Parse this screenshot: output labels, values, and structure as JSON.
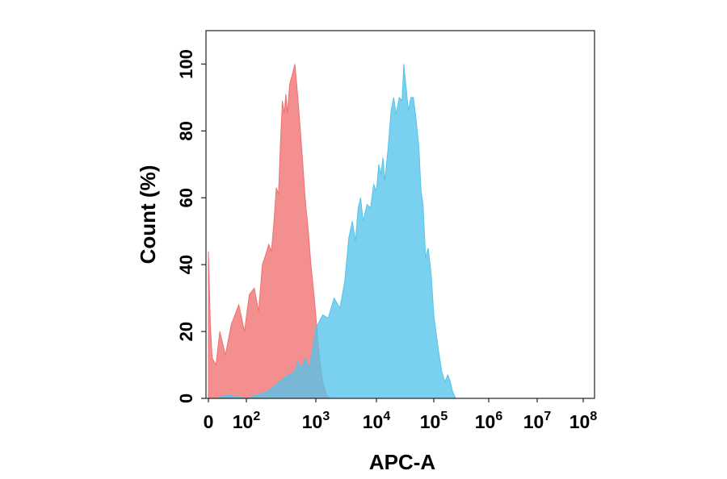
{
  "chart_data": {
    "type": "area",
    "title": "",
    "xlabel": "APC-A",
    "ylabel": "Count  (%)",
    "xscale": "biexponential",
    "xlim": [
      0,
      100000000
    ],
    "ylim": [
      0,
      110
    ],
    "grid": false,
    "x_ticks": [
      {
        "value": 0,
        "base": "0",
        "exp": ""
      },
      {
        "value": 100,
        "base": "10",
        "exp": "2"
      },
      {
        "value": 1000,
        "base": "10",
        "exp": "3"
      },
      {
        "value": 10000,
        "base": "10",
        "exp": "4"
      },
      {
        "value": 100000,
        "base": "10",
        "exp": "5"
      },
      {
        "value": 1000000,
        "base": "10",
        "exp": "6"
      },
      {
        "value": 10000000,
        "base": "10",
        "exp": "7"
      },
      {
        "value": 100000000,
        "base": "10",
        "exp": "8"
      }
    ],
    "y_ticks": [
      {
        "value": 0,
        "label": "0"
      },
      {
        "value": 20,
        "label": "20"
      },
      {
        "value": 40,
        "label": "40"
      },
      {
        "value": 60,
        "label": "60"
      },
      {
        "value": 80,
        "label": "80"
      },
      {
        "value": 100,
        "label": "100"
      }
    ],
    "series": [
      {
        "color": "#f07070",
        "points": [
          [
            0,
            44
          ],
          [
            5,
            22
          ],
          [
            10,
            12
          ],
          [
            20,
            10
          ],
          [
            30,
            20
          ],
          [
            45,
            13
          ],
          [
            60,
            22
          ],
          [
            80,
            28
          ],
          [
            95,
            20
          ],
          [
            110,
            31
          ],
          [
            130,
            33
          ],
          [
            150,
            26
          ],
          [
            170,
            40
          ],
          [
            190,
            43
          ],
          [
            210,
            46
          ],
          [
            230,
            44
          ],
          [
            250,
            53
          ],
          [
            270,
            63
          ],
          [
            290,
            61
          ],
          [
            310,
            77
          ],
          [
            330,
            89
          ],
          [
            350,
            85
          ],
          [
            370,
            91
          ],
          [
            390,
            85
          ],
          [
            420,
            94
          ],
          [
            460,
            97
          ],
          [
            500,
            100
          ],
          [
            550,
            90
          ],
          [
            600,
            80
          ],
          [
            650,
            70
          ],
          [
            700,
            60
          ],
          [
            780,
            50
          ],
          [
            850,
            40
          ],
          [
            950,
            30
          ],
          [
            1050,
            20
          ],
          [
            1150,
            12
          ],
          [
            1300,
            5
          ],
          [
            1500,
            1
          ],
          [
            1700,
            0
          ]
        ]
      },
      {
        "color": "#55c4ea",
        "points": [
          [
            20,
            0
          ],
          [
            50,
            1
          ],
          [
            100,
            0
          ],
          [
            200,
            2
          ],
          [
            300,
            5
          ],
          [
            400,
            7
          ],
          [
            500,
            8
          ],
          [
            550,
            11
          ],
          [
            620,
            9
          ],
          [
            700,
            12
          ],
          [
            800,
            9
          ],
          [
            900,
            15
          ],
          [
            1000,
            21
          ],
          [
            1300,
            25
          ],
          [
            1600,
            24
          ],
          [
            2000,
            30
          ],
          [
            2500,
            27
          ],
          [
            3000,
            35
          ],
          [
            3500,
            48
          ],
          [
            4000,
            53
          ],
          [
            4500,
            47
          ],
          [
            5000,
            57
          ],
          [
            5500,
            60
          ],
          [
            6000,
            53
          ],
          [
            7000,
            58
          ],
          [
            8000,
            57
          ],
          [
            9000,
            64
          ],
          [
            10000,
            62
          ],
          [
            11000,
            70
          ],
          [
            12000,
            67
          ],
          [
            13000,
            72
          ],
          [
            14000,
            65
          ],
          [
            16000,
            75
          ],
          [
            18000,
            86
          ],
          [
            20000,
            90
          ],
          [
            22000,
            85
          ],
          [
            25000,
            90
          ],
          [
            28000,
            89
          ],
          [
            30000,
            100
          ],
          [
            33000,
            93
          ],
          [
            36000,
            86
          ],
          [
            40000,
            90
          ],
          [
            44000,
            90
          ],
          [
            48000,
            85
          ],
          [
            55000,
            75
          ],
          [
            60000,
            62
          ],
          [
            65000,
            58
          ],
          [
            72000,
            42
          ],
          [
            80000,
            45
          ],
          [
            90000,
            37
          ],
          [
            100000,
            25
          ],
          [
            120000,
            15
          ],
          [
            140000,
            8
          ],
          [
            160000,
            5
          ],
          [
            180000,
            7
          ],
          [
            200000,
            5
          ],
          [
            220000,
            2
          ],
          [
            250000,
            0
          ]
        ]
      }
    ]
  }
}
